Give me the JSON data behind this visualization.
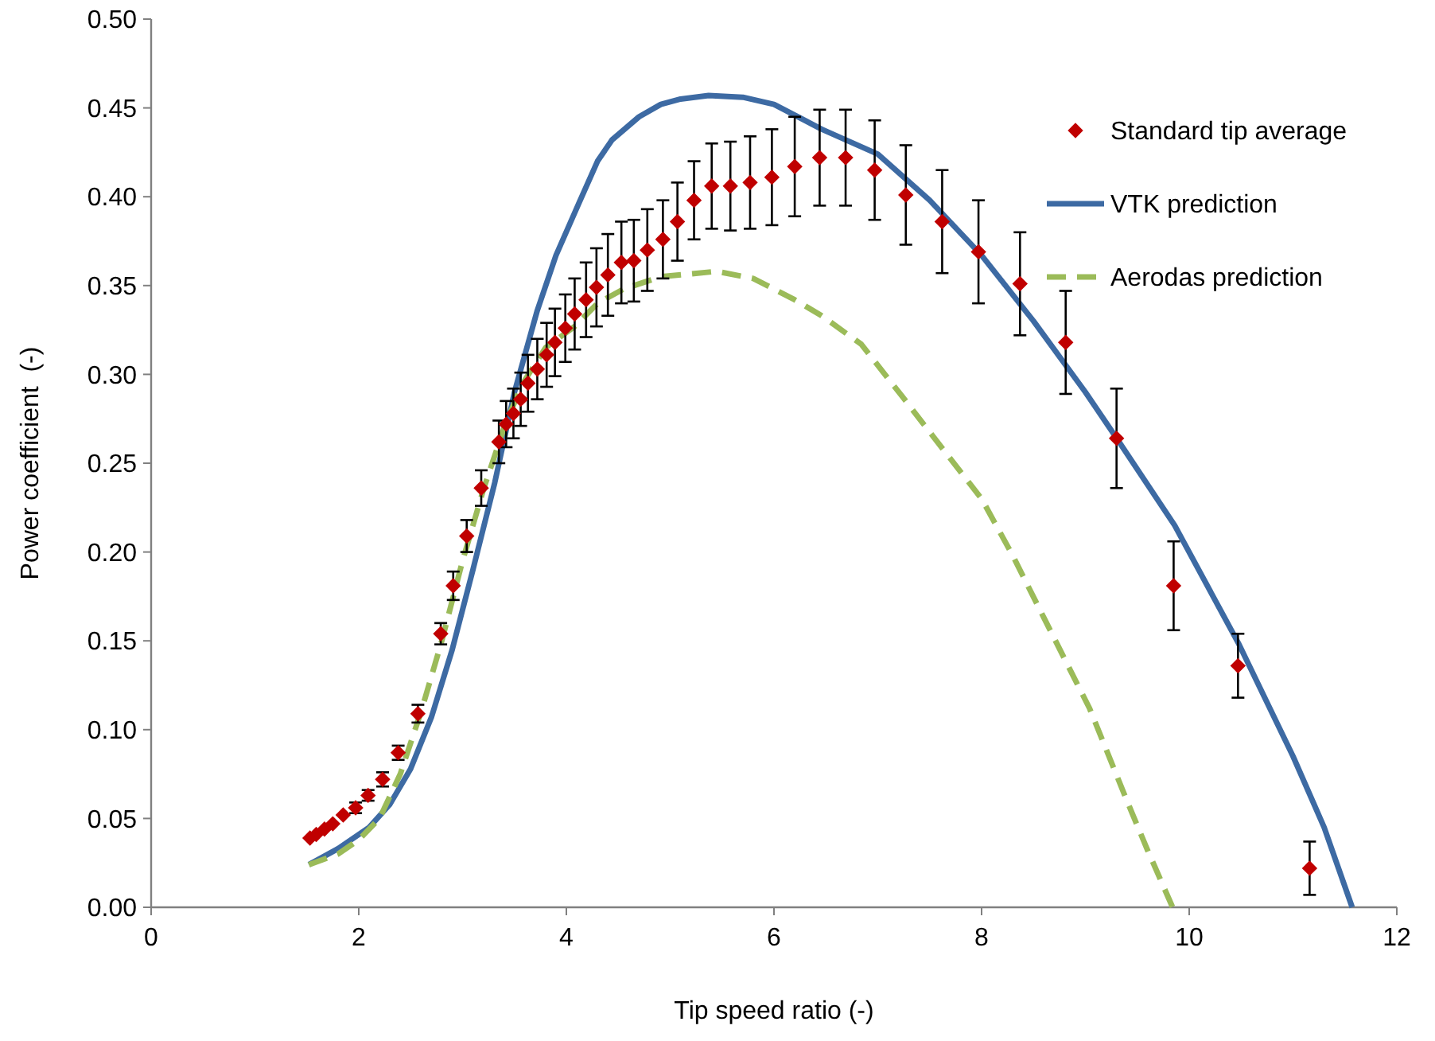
{
  "chart_data": {
    "type": "line",
    "xlabel": "Tip speed ratio (-)",
    "ylabel": "Power coefficient  (-)",
    "xlim": [
      0,
      12
    ],
    "xticks": [
      0,
      2,
      4,
      6,
      8,
      10,
      12
    ],
    "ylim": [
      0,
      0.5
    ],
    "yticks": [
      {
        "value": 0,
        "label": "0.00"
      },
      {
        "value": 0.05,
        "label": "0.05"
      },
      {
        "value": 0.1,
        "label": "0.10"
      },
      {
        "value": 0.15,
        "label": "0.15"
      },
      {
        "value": 0.2,
        "label": "0.20"
      },
      {
        "value": 0.25,
        "label": "0.25"
      },
      {
        "value": 0.3,
        "label": "0.30"
      },
      {
        "value": 0.35,
        "label": "0.35"
      },
      {
        "value": 0.4,
        "label": "0.40"
      },
      {
        "value": 0.45,
        "label": "0.45"
      },
      {
        "value": 0.5,
        "label": "0.50"
      }
    ],
    "grid": false,
    "legend": "top right",
    "series": [
      {
        "name": "Standard tip average",
        "type": "scatter",
        "marker": "diamond",
        "color": "#c00000",
        "x": [
          1.53,
          1.59,
          1.67,
          1.75,
          1.85,
          1.97,
          2.09,
          2.23,
          2.38,
          2.57,
          2.79,
          2.91,
          3.04,
          3.18,
          3.35,
          3.42,
          3.49,
          3.56,
          3.63,
          3.72,
          3.81,
          3.89,
          3.99,
          4.08,
          4.19,
          4.29,
          4.4,
          4.53,
          4.65,
          4.78,
          4.93,
          5.07,
          5.23,
          5.4,
          5.58,
          5.77,
          5.98,
          6.2,
          6.44,
          6.69,
          6.97,
          7.27,
          7.62,
          7.97,
          8.37,
          8.81,
          9.3,
          9.85,
          10.47,
          11.16
        ],
        "values": [
          0.039,
          0.041,
          0.044,
          0.047,
          0.052,
          0.056,
          0.063,
          0.072,
          0.087,
          0.109,
          0.154,
          0.181,
          0.209,
          0.236,
          0.262,
          0.272,
          0.278,
          0.286,
          0.295,
          0.303,
          0.311,
          0.318,
          0.326,
          0.334,
          0.342,
          0.349,
          0.356,
          0.363,
          0.364,
          0.37,
          0.376,
          0.386,
          0.398,
          0.406,
          0.406,
          0.408,
          0.411,
          0.417,
          0.422,
          0.422,
          0.415,
          0.401,
          0.386,
          0.369,
          0.351,
          0.318,
          0.264,
          0.181,
          0.136,
          0.022
        ],
        "errors": [
          null,
          null,
          null,
          null,
          null,
          0.003,
          0.003,
          0.004,
          0.004,
          0.005,
          0.006,
          0.008,
          0.009,
          0.01,
          0.012,
          0.013,
          0.014,
          0.015,
          0.016,
          0.017,
          0.018,
          0.019,
          0.019,
          0.02,
          0.021,
          0.022,
          0.023,
          0.023,
          0.023,
          0.023,
          0.022,
          0.022,
          0.022,
          0.024,
          0.025,
          0.026,
          0.027,
          0.028,
          0.027,
          0.027,
          0.028,
          0.028,
          0.029,
          0.029,
          0.029,
          0.029,
          0.028,
          0.025,
          0.018,
          0.015
        ]
      },
      {
        "name": "VTK prediction",
        "line_style": "solid",
        "color": "#3d6aa3",
        "x": [
          1.52,
          1.8,
          2.1,
          2.3,
          2.5,
          2.7,
          2.9,
          3.1,
          3.31,
          3.5,
          3.72,
          3.9,
          4.08,
          4.3,
          4.44,
          4.7,
          4.91,
          5.1,
          5.37,
          5.7,
          6.0,
          6.46,
          7.0,
          7.5,
          8.0,
          8.5,
          9.0,
          9.29,
          9.86,
          10.48,
          11.0,
          11.3,
          11.57
        ],
        "values": [
          0.024,
          0.033,
          0.045,
          0.058,
          0.078,
          0.107,
          0.145,
          0.19,
          0.239,
          0.29,
          0.336,
          0.367,
          0.391,
          0.42,
          0.432,
          0.445,
          0.452,
          0.455,
          0.457,
          0.456,
          0.452,
          0.438,
          0.424,
          0.398,
          0.367,
          0.33,
          0.29,
          0.265,
          0.215,
          0.148,
          0.085,
          0.045,
          0
        ]
      },
      {
        "name": "Aerodas prediction",
        "type": "line",
        "line_style": "dashed",
        "color": "#9bbb59",
        "x": [
          1.52,
          1.8,
          2.0,
          2.2,
          2.4,
          2.6,
          2.8,
          3.0,
          3.2,
          3.4,
          3.57,
          3.8,
          4.08,
          4.3,
          4.55,
          4.91,
          5.45,
          5.8,
          6.2,
          6.46,
          6.84,
          7.23,
          7.6,
          8.0,
          8.3,
          8.6,
          9.04,
          9.4,
          9.6,
          9.84
        ],
        "values": [
          0.024,
          0.03,
          0.038,
          0.05,
          0.075,
          0.11,
          0.15,
          0.195,
          0.235,
          0.27,
          0.294,
          0.315,
          0.327,
          0.34,
          0.348,
          0.355,
          0.358,
          0.354,
          0.342,
          0.333,
          0.317,
          0.288,
          0.26,
          0.23,
          0.198,
          0.163,
          0.112,
          0.06,
          0.032,
          0
        ]
      }
    ]
  }
}
